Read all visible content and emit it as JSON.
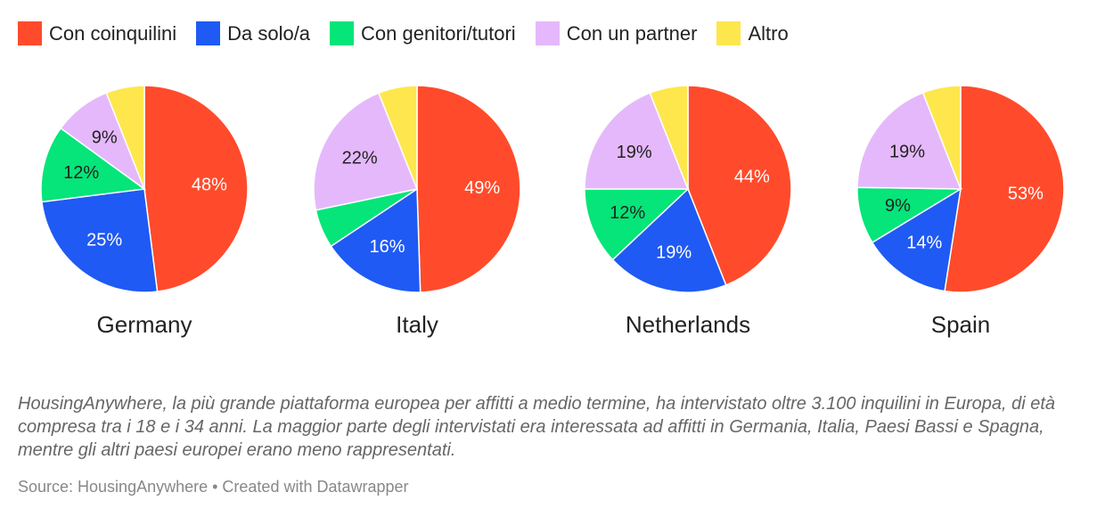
{
  "chart_data": {
    "type": "pie",
    "legend": [
      {
        "label": "Con coinquilini",
        "color": "#ff4b2b"
      },
      {
        "label": "Da solo/a",
        "color": "#1f5af4"
      },
      {
        "label": "Con genitori/tutori",
        "color": "#05e579"
      },
      {
        "label": "Con un partner",
        "color": "#e5b8fb"
      },
      {
        "label": "Altro",
        "color": "#fde74c"
      }
    ],
    "charts": [
      {
        "title": "Germany",
        "values": [
          48,
          25,
          12,
          9,
          6
        ],
        "labels": [
          "48%",
          "25%",
          "12%",
          "9%",
          ""
        ]
      },
      {
        "title": "Italy",
        "values": [
          49,
          16,
          6,
          22,
          6
        ],
        "labels": [
          "49%",
          "16%",
          "",
          "22%",
          ""
        ]
      },
      {
        "title": "Netherlands",
        "values": [
          44,
          19,
          12,
          19,
          6
        ],
        "labels": [
          "44%",
          "19%",
          "12%",
          "19%",
          ""
        ]
      },
      {
        "title": "Spain",
        "values": [
          53,
          14,
          9,
          19,
          6
        ],
        "labels": [
          "53%",
          "14%",
          "9%",
          "19%",
          ""
        ]
      }
    ]
  },
  "notes": "HousingAnywhere, la più grande piattaforma europea per affitti a medio termine, ha intervistato oltre 3.100 inquilini in Europa, di età compresa tra i 18 e i 34 anni. La maggior parte degli intervistati era interessata ad affitti in Germania, Italia, Paesi Bassi e Spagna, mentre gli altri paesi europei erano meno rappresentati.",
  "source": "Source: HousingAnywhere • Created with Datawrapper"
}
